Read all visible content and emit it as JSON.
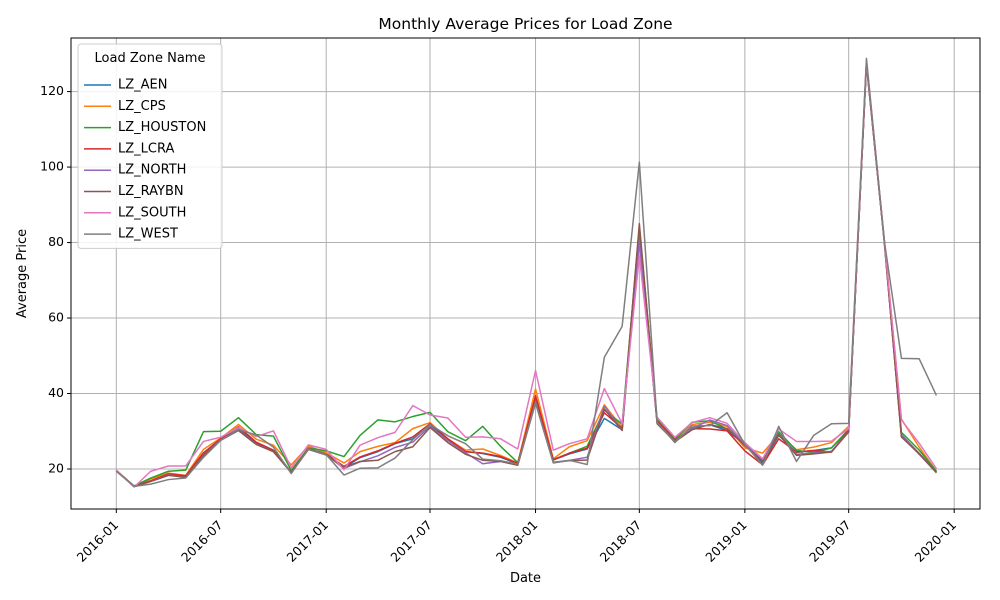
{
  "chart_data": {
    "type": "line",
    "title": "Monthly Average Prices for Load Zone",
    "xlabel": "Date",
    "ylabel": "Average Price",
    "grid": true,
    "legend_title": "Load Zone Name",
    "legend_position": "top-left",
    "xlim": [
      "2015-10-14",
      "2020-02-15"
    ],
    "ylim": [
      9.4,
      134.2
    ],
    "x_ticks": [
      "2016-01",
      "2016-07",
      "2017-01",
      "2017-07",
      "2018-01",
      "2018-07",
      "2019-01",
      "2019-07",
      "2020-01"
    ],
    "y_ticks": [
      20,
      40,
      60,
      80,
      100,
      120
    ],
    "x": [
      "2016-01",
      "2016-02",
      "2016-03",
      "2016-04",
      "2016-05",
      "2016-06",
      "2016-07",
      "2016-08",
      "2016-09",
      "2016-10",
      "2016-11",
      "2016-12",
      "2017-01",
      "2017-02",
      "2017-03",
      "2017-04",
      "2017-05",
      "2017-06",
      "2017-07",
      "2017-08",
      "2017-09",
      "2017-10",
      "2017-11",
      "2017-12",
      "2018-01",
      "2018-02",
      "2018-03",
      "2018-04",
      "2018-05",
      "2018-06",
      "2018-07",
      "2018-08",
      "2018-09",
      "2018-10",
      "2018-11",
      "2018-12",
      "2019-01",
      "2019-02",
      "2019-03",
      "2019-04",
      "2019-05",
      "2019-06",
      "2019-07",
      "2019-08",
      "2019-09",
      "2019-10",
      "2019-11",
      "2019-12"
    ],
    "series": [
      {
        "name": "LZ_AEN",
        "color": "#1f77b4",
        "values": [
          19.5,
          15.4,
          16.8,
          18.6,
          17.9,
          23.8,
          27.8,
          30.6,
          26.8,
          24.9,
          19.2,
          25.3,
          24.1,
          20.4,
          23.0,
          24.6,
          26.7,
          28.0,
          31.7,
          27.9,
          24.6,
          24.1,
          23.1,
          21.4,
          38.9,
          22.4,
          24.0,
          25.3,
          33.4,
          30.4,
          81.0,
          32.6,
          27.6,
          30.9,
          31.7,
          30.2,
          26.4,
          21.6,
          28.9,
          24.4,
          24.9,
          25.6,
          30.2,
          127.5,
          80.5,
          29.1,
          24.1,
          19.2
        ]
      },
      {
        "name": "LZ_CPS",
        "color": "#ff7f0e",
        "values": [
          19.7,
          15.3,
          17.4,
          18.9,
          18.3,
          25.2,
          28.2,
          31.8,
          27.9,
          26.3,
          21.1,
          26.1,
          24.3,
          21.6,
          24.6,
          26.0,
          27.0,
          30.7,
          32.3,
          28.0,
          25.0,
          25.3,
          23.6,
          21.6,
          41.2,
          22.7,
          25.9,
          27.5,
          37.0,
          31.0,
          84.0,
          33.0,
          27.8,
          31.8,
          32.4,
          31.3,
          25.6,
          24.2,
          29.2,
          25.1,
          25.8,
          27.0,
          31.3,
          128.0,
          80.8,
          33.2,
          25.8,
          19.4
        ]
      },
      {
        "name": "LZ_HOUSTON",
        "color": "#2ca02c",
        "values": [
          19.6,
          15.5,
          17.6,
          19.4,
          19.7,
          29.9,
          30.0,
          33.6,
          29.1,
          28.7,
          19.6,
          25.6,
          24.8,
          23.3,
          28.9,
          33.0,
          32.5,
          33.9,
          35.0,
          29.9,
          27.5,
          31.3,
          26.0,
          21.7,
          37.8,
          22.5,
          24.2,
          26.0,
          35.6,
          31.9,
          83.7,
          33.1,
          27.9,
          32.4,
          32.8,
          30.6,
          26.9,
          22.1,
          29.9,
          24.9,
          24.4,
          25.6,
          30.5,
          127.6,
          81.0,
          29.7,
          25.0,
          19.4
        ]
      },
      {
        "name": "LZ_LCRA",
        "color": "#d62728",
        "values": [
          19.5,
          15.4,
          16.9,
          18.7,
          18.2,
          24.3,
          28.0,
          31.2,
          27.1,
          25.0,
          19.1,
          25.4,
          23.9,
          20.7,
          23.2,
          24.8,
          26.8,
          28.5,
          32.0,
          28.0,
          24.6,
          24.2,
          23.3,
          21.5,
          39.4,
          22.4,
          24.2,
          25.5,
          34.9,
          30.8,
          80.6,
          32.7,
          27.6,
          30.7,
          30.6,
          30.1,
          24.8,
          21.1,
          28.0,
          24.5,
          24.9,
          24.5,
          30.2,
          127.3,
          80.6,
          28.6,
          24.1,
          19.0
        ]
      },
      {
        "name": "LZ_NORTH",
        "color": "#9467bd",
        "values": [
          19.6,
          15.3,
          16.7,
          18.4,
          17.8,
          23.7,
          27.7,
          30.3,
          26.6,
          24.6,
          19.0,
          25.2,
          23.8,
          20.1,
          21.9,
          23.5,
          25.7,
          27.1,
          31.3,
          27.5,
          24.3,
          21.4,
          22.0,
          21.1,
          37.8,
          21.8,
          22.3,
          23.1,
          36.7,
          30.3,
          80.6,
          32.2,
          27.4,
          30.7,
          33.0,
          31.5,
          26.5,
          22.3,
          29.4,
          23.9,
          24.2,
          24.7,
          29.9,
          127.2,
          80.4,
          29.0,
          23.9,
          19.0
        ]
      },
      {
        "name": "LZ_RAYBN",
        "color": "#8c564b",
        "values": [
          19.7,
          15.4,
          16.7,
          18.3,
          17.8,
          23.6,
          27.6,
          30.2,
          26.5,
          24.6,
          19.1,
          25.2,
          23.7,
          20.5,
          22.0,
          22.3,
          24.6,
          25.9,
          31.0,
          27.0,
          23.9,
          22.3,
          22.0,
          21.0,
          37.5,
          21.7,
          22.2,
          22.4,
          35.9,
          30.2,
          85.0,
          32.0,
          27.2,
          30.4,
          31.8,
          30.7,
          26.2,
          22.0,
          29.2,
          23.6,
          24.0,
          24.5,
          29.8,
          127.3,
          80.3,
          28.5,
          24.0,
          19.1
        ]
      },
      {
        "name": "LZ_SOUTH",
        "color": "#e377c2",
        "values": [
          19.7,
          15.2,
          19.4,
          20.8,
          20.8,
          27.3,
          28.4,
          31.0,
          28.6,
          30.1,
          20.3,
          26.4,
          25.2,
          19.8,
          26.3,
          28.3,
          29.7,
          36.8,
          34.3,
          33.5,
          28.4,
          28.5,
          28.0,
          25.3,
          46.1,
          25.0,
          26.7,
          28.0,
          41.3,
          32.0,
          76.5,
          33.7,
          28.4,
          32.3,
          33.6,
          32.1,
          27.0,
          22.7,
          30.6,
          27.3,
          27.3,
          27.4,
          30.7,
          128.3,
          81.0,
          33.0,
          26.8,
          20.1
        ]
      },
      {
        "name": "LZ_WEST",
        "color": "#7f7f7f",
        "values": [
          19.4,
          15.4,
          16.0,
          17.2,
          17.6,
          23.1,
          27.6,
          30.5,
          29.0,
          25.8,
          18.8,
          25.3,
          23.8,
          18.4,
          20.2,
          20.3,
          22.9,
          27.8,
          31.8,
          28.8,
          26.7,
          22.6,
          22.2,
          21.3,
          37.5,
          21.6,
          22.3,
          21.2,
          49.6,
          57.8,
          101.3,
          32.4,
          27.0,
          31.4,
          31.5,
          34.9,
          26.5,
          21.0,
          31.3,
          22.0,
          28.9,
          32.0,
          32.1,
          128.8,
          80.6,
          49.3,
          49.2,
          39.5
        ]
      }
    ]
  }
}
